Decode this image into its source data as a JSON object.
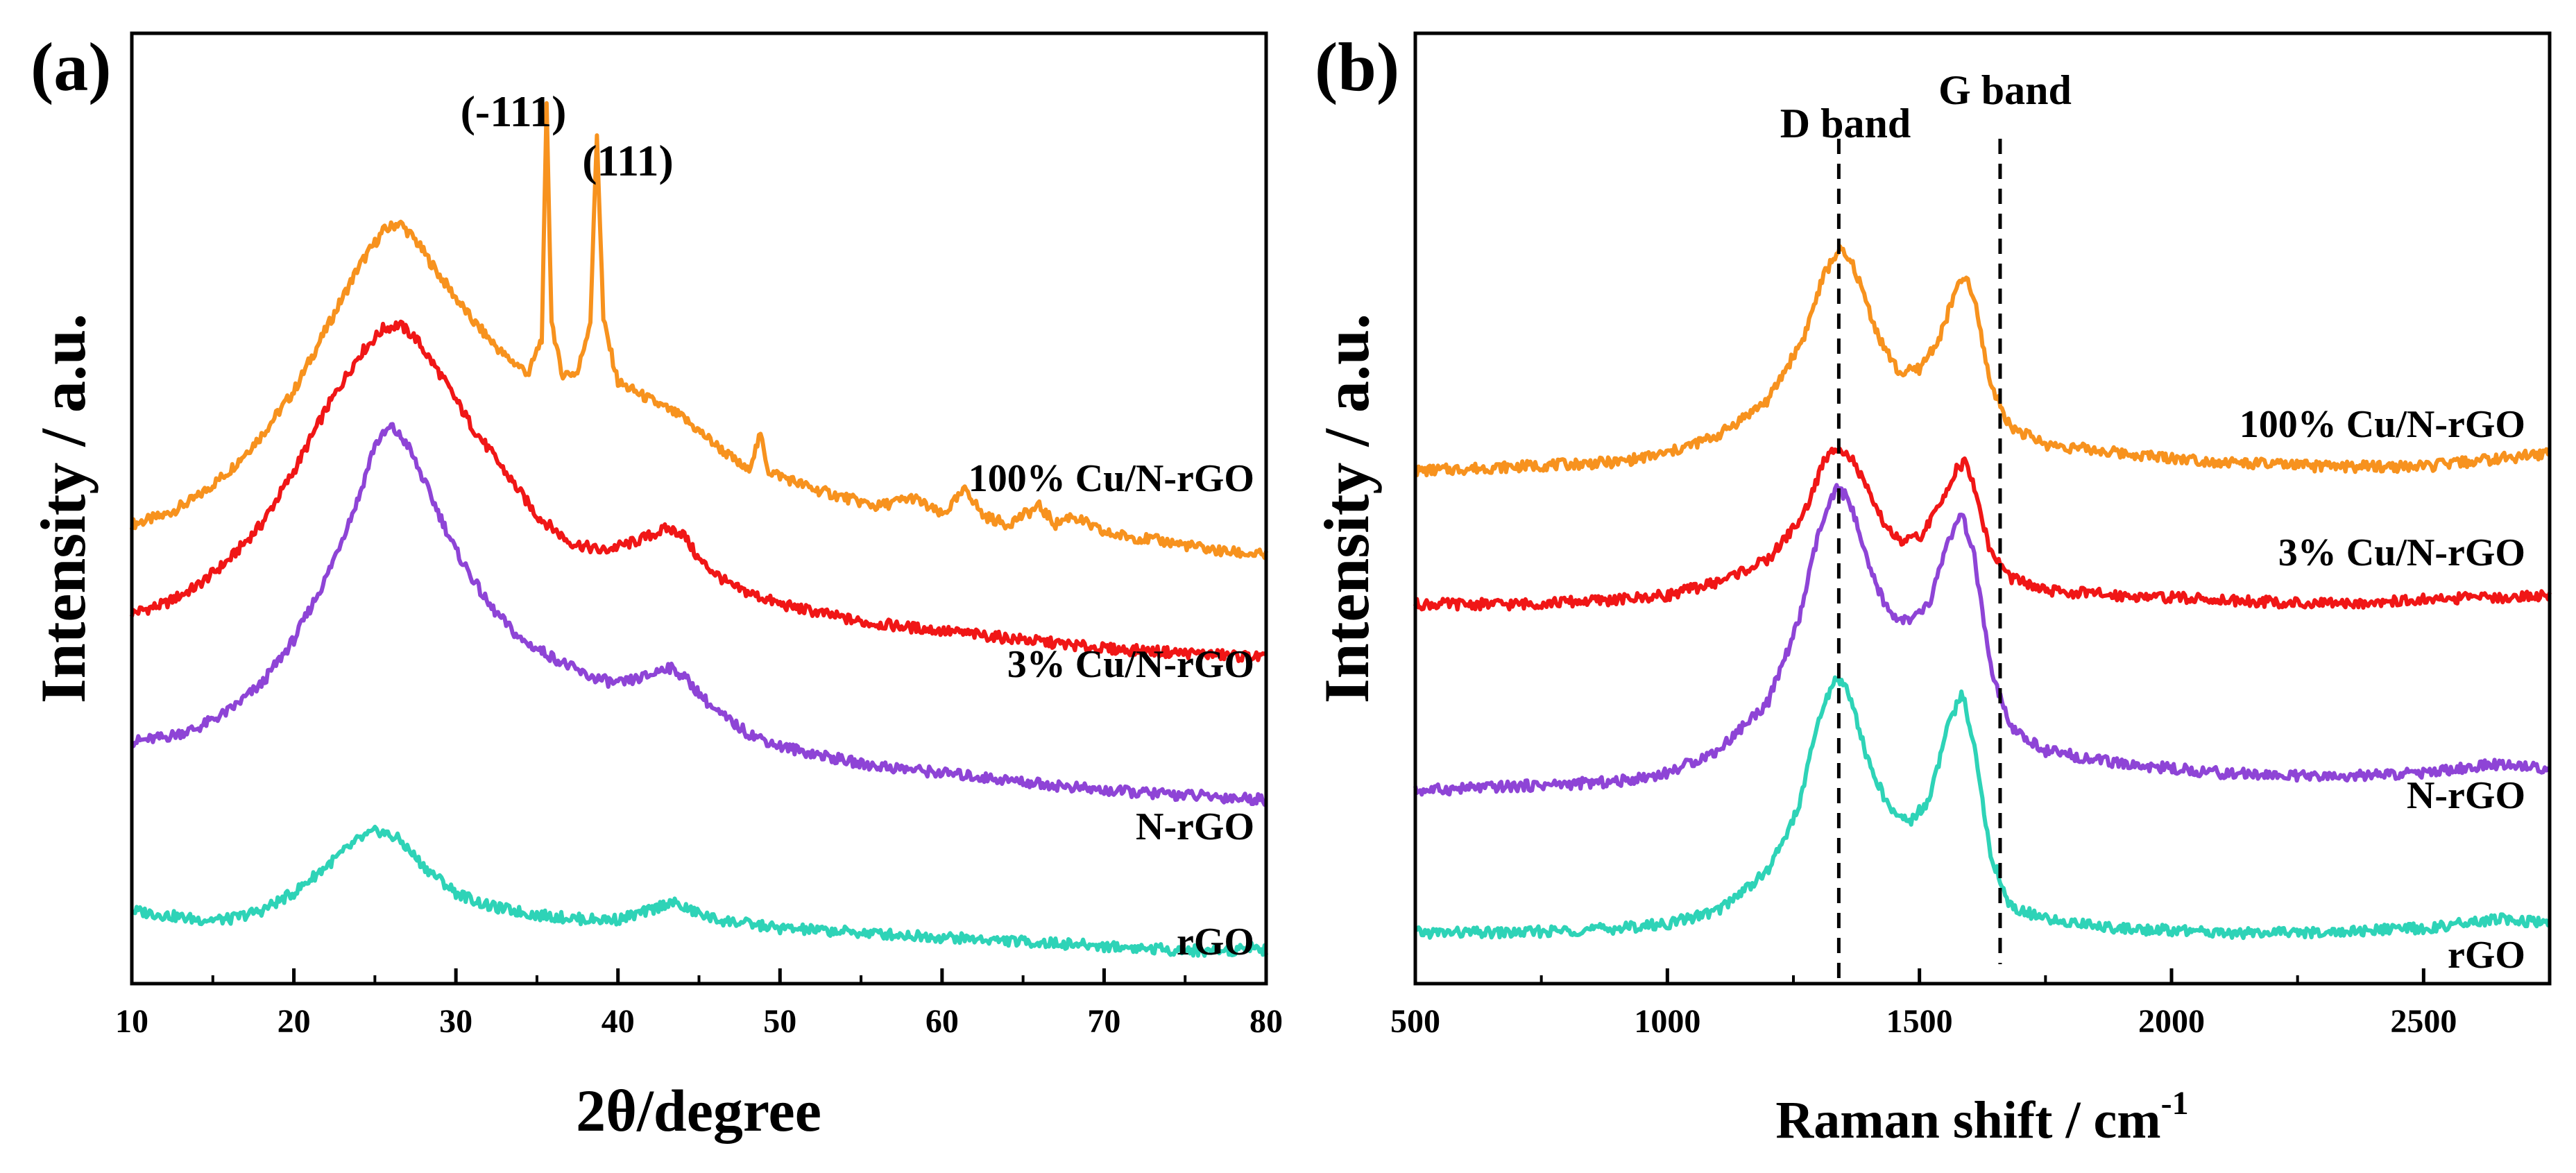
{
  "chart_data": [
    {
      "panel_label": "(a)",
      "type": "line",
      "title": "",
      "xlabel": "2θ/degree",
      "ylabel": "Intensity / a.u.",
      "xlim": [
        10,
        80
      ],
      "ylim": [
        0,
        1
      ],
      "x_ticks": [
        10,
        20,
        30,
        40,
        50,
        60,
        70,
        80
      ],
      "x_tick_labels": [
        "10",
        "20",
        "30",
        "40",
        "50",
        "60",
        "70",
        "80"
      ],
      "grid": false,
      "legend": "inline labels at right end of each curve",
      "series": [
        {
          "name": "100% Cu/N-rGO",
          "color": "#F7921E",
          "points": [
            [
              10,
              0.49
            ],
            [
              12,
              0.5
            ],
            [
              14,
              0.52
            ],
            [
              16,
              0.55
            ],
            [
              18,
              0.59
            ],
            [
              20,
              0.64
            ],
            [
              22,
              0.71
            ],
            [
              24,
              0.78
            ],
            [
              25.5,
              0.82
            ],
            [
              26.5,
              0.83
            ],
            [
              27.5,
              0.81
            ],
            [
              29,
              0.77
            ],
            [
              31,
              0.72
            ],
            [
              33,
              0.68
            ],
            [
              34.5,
              0.66
            ],
            [
              35.3,
              0.7
            ],
            [
              35.6,
              0.96
            ],
            [
              35.9,
              0.72
            ],
            [
              36.5,
              0.66
            ],
            [
              37.5,
              0.66
            ],
            [
              38.3,
              0.72
            ],
            [
              38.7,
              0.93
            ],
            [
              39.1,
              0.72
            ],
            [
              40,
              0.65
            ],
            [
              42,
              0.63
            ],
            [
              44,
              0.61
            ],
            [
              46,
              0.58
            ],
            [
              48,
              0.55
            ],
            [
              48.8,
              0.59
            ],
            [
              49.3,
              0.55
            ],
            [
              52,
              0.53
            ],
            [
              56,
              0.51
            ],
            [
              58.2,
              0.52
            ],
            [
              60,
              0.5
            ],
            [
              61.5,
              0.53
            ],
            [
              62.5,
              0.5
            ],
            [
              64,
              0.49
            ],
            [
              66,
              0.51
            ],
            [
              67,
              0.49
            ],
            [
              68,
              0.5
            ],
            [
              70,
              0.48
            ],
            [
              74,
              0.47
            ],
            [
              77,
              0.46
            ],
            [
              80,
              0.455
            ]
          ]
        },
        {
          "name": "3% Cu/N-rGO",
          "color": "#F01616",
          "points": [
            [
              10,
              0.39
            ],
            [
              12,
              0.4
            ],
            [
              14,
              0.42
            ],
            [
              16,
              0.45
            ],
            [
              18,
              0.49
            ],
            [
              20,
              0.55
            ],
            [
              22,
              0.62
            ],
            [
              24,
              0.68
            ],
            [
              25.5,
              0.71
            ],
            [
              26.5,
              0.715
            ],
            [
              27.5,
              0.7
            ],
            [
              29,
              0.66
            ],
            [
              31,
              0.6
            ],
            [
              33,
              0.55
            ],
            [
              35,
              0.5
            ],
            [
              37,
              0.47
            ],
            [
              39,
              0.46
            ],
            [
              41,
              0.47
            ],
            [
              43,
              0.485
            ],
            [
              44,
              0.48
            ],
            [
              45,
              0.45
            ],
            [
              47,
              0.42
            ],
            [
              50,
              0.4
            ],
            [
              55,
              0.38
            ],
            [
              60,
              0.37
            ],
            [
              65,
              0.36
            ],
            [
              70,
              0.35
            ],
            [
              75,
              0.345
            ],
            [
              80,
              0.34
            ]
          ]
        },
        {
          "name": "N-rGO",
          "color": "#8E44D6",
          "points": [
            [
              10,
              0.245
            ],
            [
              12,
              0.25
            ],
            [
              14,
              0.26
            ],
            [
              16,
              0.28
            ],
            [
              18,
              0.31
            ],
            [
              20,
              0.36
            ],
            [
              22,
              0.43
            ],
            [
              24,
              0.52
            ],
            [
              25,
              0.58
            ],
            [
              26,
              0.6
            ],
            [
              27,
              0.58
            ],
            [
              28,
              0.54
            ],
            [
              30,
              0.46
            ],
            [
              32,
              0.4
            ],
            [
              34,
              0.36
            ],
            [
              36,
              0.34
            ],
            [
              38,
              0.32
            ],
            [
              40,
              0.31
            ],
            [
              42,
              0.32
            ],
            [
              43,
              0.33
            ],
            [
              44,
              0.32
            ],
            [
              46,
              0.28
            ],
            [
              48,
              0.255
            ],
            [
              50,
              0.24
            ],
            [
              55,
              0.22
            ],
            [
              60,
              0.21
            ],
            [
              65,
              0.2
            ],
            [
              70,
              0.19
            ],
            [
              75,
              0.185
            ],
            [
              80,
              0.18
            ]
          ]
        },
        {
          "name": "rGO",
          "color": "#2ED3B7",
          "points": [
            [
              10,
              0.055
            ],
            [
              12,
              0.05
            ],
            [
              14,
              0.045
            ],
            [
              16,
              0.045
            ],
            [
              18,
              0.055
            ],
            [
              20,
              0.075
            ],
            [
              22,
              0.105
            ],
            [
              24,
              0.135
            ],
            [
              25.2,
              0.145
            ],
            [
              26.5,
              0.135
            ],
            [
              28,
              0.105
            ],
            [
              30,
              0.075
            ],
            [
              32,
              0.06
            ],
            [
              35,
              0.05
            ],
            [
              38,
              0.045
            ],
            [
              40,
              0.045
            ],
            [
              42,
              0.055
            ],
            [
              43.2,
              0.065
            ],
            [
              44.5,
              0.055
            ],
            [
              46,
              0.045
            ],
            [
              50,
              0.035
            ],
            [
              55,
              0.03
            ],
            [
              60,
              0.025
            ],
            [
              65,
              0.02
            ],
            [
              70,
              0.015
            ],
            [
              75,
              0.01
            ],
            [
              78,
              0.01
            ],
            [
              79,
              0.015
            ],
            [
              80,
              0.01
            ]
          ]
        }
      ],
      "annotations": [
        {
          "text": "(-111)",
          "x": 35.6
        },
        {
          "text": "(111)",
          "x": 38.7
        }
      ]
    },
    {
      "panel_label": "(b)",
      "type": "line",
      "title": "",
      "xlabel": "Raman  shift / cm",
      "xlabel_sup": "-1",
      "ylabel": "Intensity  / a.u.",
      "xlim": [
        500,
        2750
      ],
      "ylim": [
        0,
        1
      ],
      "x_ticks": [
        500,
        1000,
        1500,
        2000,
        2500
      ],
      "x_tick_labels": [
        "500",
        "1000",
        "1500",
        "2000",
        "2500"
      ],
      "grid": false,
      "legend": "inline labels at right end of each curve",
      "reference_lines": [
        {
          "label": "D band",
          "x": 1340
        },
        {
          "label": "G band",
          "x": 1660
        }
      ],
      "series": [
        {
          "name": "100% Cu/N-rGO",
          "color": "#F7921E",
          "points": [
            [
              500,
              0.55
            ],
            [
              700,
              0.555
            ],
            [
              900,
              0.56
            ],
            [
              1000,
              0.57
            ],
            [
              1100,
              0.59
            ],
            [
              1200,
              0.63
            ],
            [
              1270,
              0.7
            ],
            [
              1310,
              0.77
            ],
            [
              1340,
              0.8
            ],
            [
              1370,
              0.78
            ],
            [
              1420,
              0.7
            ],
            [
              1460,
              0.66
            ],
            [
              1500,
              0.665
            ],
            [
              1540,
              0.7
            ],
            [
              1570,
              0.75
            ],
            [
              1590,
              0.77
            ],
            [
              1610,
              0.74
            ],
            [
              1640,
              0.65
            ],
            [
              1680,
              0.6
            ],
            [
              1750,
              0.58
            ],
            [
              1900,
              0.57
            ],
            [
              2100,
              0.56
            ],
            [
              2300,
              0.555
            ],
            [
              2500,
              0.555
            ],
            [
              2750,
              0.57
            ]
          ]
        },
        {
          "name": "3% Cu/N-rGO",
          "color": "#F01616",
          "points": [
            [
              500,
              0.4
            ],
            [
              700,
              0.4
            ],
            [
              900,
              0.405
            ],
            [
              1000,
              0.41
            ],
            [
              1100,
              0.425
            ],
            [
              1200,
              0.45
            ],
            [
              1270,
              0.5
            ],
            [
              1310,
              0.56
            ],
            [
              1340,
              0.58
            ],
            [
              1370,
              0.56
            ],
            [
              1420,
              0.5
            ],
            [
              1460,
              0.47
            ],
            [
              1500,
              0.475
            ],
            [
              1540,
              0.51
            ],
            [
              1570,
              0.55
            ],
            [
              1590,
              0.56
            ],
            [
              1610,
              0.53
            ],
            [
              1640,
              0.46
            ],
            [
              1680,
              0.43
            ],
            [
              1750,
              0.415
            ],
            [
              1900,
              0.41
            ],
            [
              2100,
              0.405
            ],
            [
              2300,
              0.4
            ],
            [
              2500,
              0.405
            ],
            [
              2750,
              0.41
            ]
          ]
        },
        {
          "name": "N-rGO",
          "color": "#8E44D6",
          "points": [
            [
              500,
              0.19
            ],
            [
              700,
              0.195
            ],
            [
              900,
              0.2
            ],
            [
              1000,
              0.21
            ],
            [
              1100,
              0.235
            ],
            [
              1200,
              0.29
            ],
            [
              1260,
              0.38
            ],
            [
              1300,
              0.48
            ],
            [
              1335,
              0.53
            ],
            [
              1360,
              0.52
            ],
            [
              1400,
              0.44
            ],
            [
              1440,
              0.39
            ],
            [
              1480,
              0.38
            ],
            [
              1520,
              0.4
            ],
            [
              1555,
              0.47
            ],
            [
              1585,
              0.5
            ],
            [
              1610,
              0.45
            ],
            [
              1640,
              0.33
            ],
            [
              1680,
              0.26
            ],
            [
              1750,
              0.235
            ],
            [
              1900,
              0.22
            ],
            [
              2100,
              0.21
            ],
            [
              2300,
              0.205
            ],
            [
              2500,
              0.21
            ],
            [
              2650,
              0.22
            ],
            [
              2750,
              0.215
            ]
          ]
        },
        {
          "name": "rGO",
          "color": "#2ED3B7",
          "points": [
            [
              500,
              0.03
            ],
            [
              700,
              0.03
            ],
            [
              900,
              0.035
            ],
            [
              1000,
              0.04
            ],
            [
              1100,
              0.055
            ],
            [
              1200,
              0.1
            ],
            [
              1260,
              0.17
            ],
            [
              1300,
              0.27
            ],
            [
              1335,
              0.32
            ],
            [
              1360,
              0.3
            ],
            [
              1400,
              0.22
            ],
            [
              1440,
              0.17
            ],
            [
              1480,
              0.155
            ],
            [
              1520,
              0.18
            ],
            [
              1555,
              0.26
            ],
            [
              1585,
              0.3
            ],
            [
              1610,
              0.24
            ],
            [
              1640,
              0.12
            ],
            [
              1680,
              0.06
            ],
            [
              1750,
              0.045
            ],
            [
              1900,
              0.035
            ],
            [
              2100,
              0.03
            ],
            [
              2300,
              0.03
            ],
            [
              2500,
              0.035
            ],
            [
              2650,
              0.045
            ],
            [
              2750,
              0.04
            ]
          ]
        }
      ]
    }
  ]
}
